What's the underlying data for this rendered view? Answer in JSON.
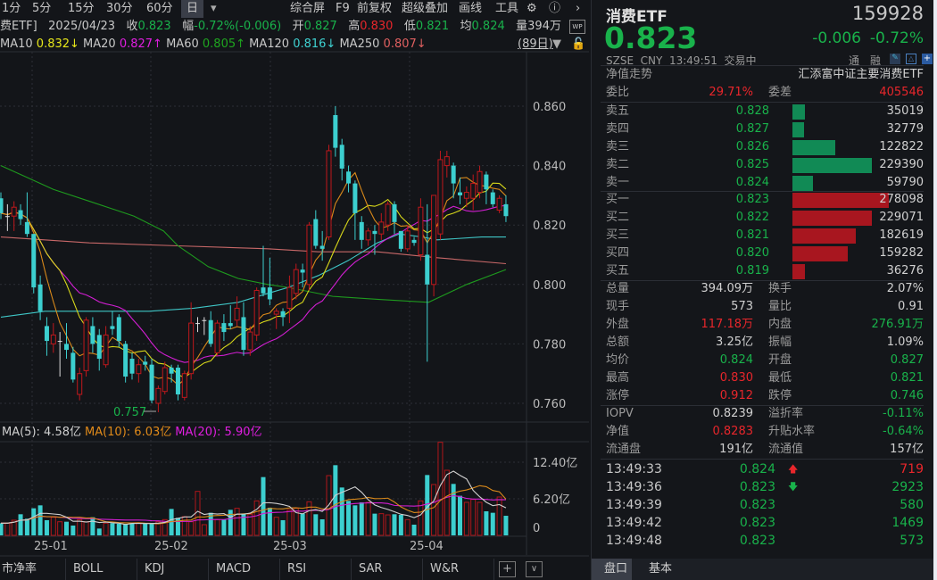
{
  "toolbar": {
    "periods": [
      "1分",
      "5分",
      "15分",
      "30分",
      "60分",
      "日"
    ],
    "selected": "日",
    "tools": [
      "综合屏",
      "F9",
      "前复权",
      "超级叠加",
      "画线",
      "工具"
    ]
  },
  "info": {
    "name": "费ETF]",
    "date": "2025/04/23",
    "close_label": "收",
    "close": "0.823",
    "chg_label": "幅",
    "chg": "-0.72%(-0.006)",
    "open_label": "开",
    "open": "0.827",
    "high_label": "高",
    "high": "0.830",
    "low_label": "低",
    "low": "0.821",
    "avg_label": "均",
    "avg": "0.824",
    "vol_label": "量",
    "vol": "394万"
  },
  "ma_row": [
    {
      "label": "MA10",
      "value": "0.832↓",
      "color": "#e6e61a"
    },
    {
      "label": "MA20",
      "value": "0.827↑",
      "color": "#e01ee0"
    },
    {
      "label": "MA60",
      "value": "0.805↑",
      "color": "#1fa51f"
    },
    {
      "label": "MA120",
      "value": "0.816↓",
      "color": "#3fd2d2"
    },
    {
      "label": "MA250",
      "value": "0.807↓",
      "color": "#e06060"
    }
  ],
  "days_label": "(89日)",
  "chart_data": {
    "type": "candlestick",
    "price_ticks": [
      "0.860",
      "0.840",
      "0.820",
      "0.800",
      "0.780",
      "0.760"
    ],
    "ylim": [
      0.757,
      0.86
    ],
    "low_marker": "0.757",
    "month_labels": [
      "25-01",
      "25-02",
      "25-03",
      "25-04"
    ],
    "candles": [
      [
        0.829,
        0.831,
        0.822,
        0.824
      ],
      [
        0.823,
        0.827,
        0.818,
        0.823
      ],
      [
        0.823,
        0.828,
        0.818,
        0.826
      ],
      [
        0.825,
        0.827,
        0.82,
        0.822
      ],
      [
        0.821,
        0.831,
        0.816,
        0.817
      ],
      [
        0.817,
        0.817,
        0.797,
        0.799
      ],
      [
        0.8,
        0.803,
        0.788,
        0.791
      ],
      [
        0.786,
        0.789,
        0.776,
        0.781
      ],
      [
        0.78,
        0.787,
        0.777,
        0.783
      ],
      [
        0.781,
        0.784,
        0.769,
        0.781
      ],
      [
        0.78,
        0.787,
        0.775,
        0.778
      ],
      [
        0.777,
        0.779,
        0.767,
        0.768
      ],
      [
        0.763,
        0.772,
        0.761,
        0.77
      ],
      [
        0.771,
        0.789,
        0.769,
        0.788
      ],
      [
        0.786,
        0.789,
        0.777,
        0.78
      ],
      [
        0.783,
        0.785,
        0.771,
        0.775
      ],
      [
        0.773,
        0.786,
        0.772,
        0.783
      ],
      [
        0.786,
        0.791,
        0.783,
        0.785
      ],
      [
        0.789,
        0.79,
        0.779,
        0.781
      ],
      [
        0.78,
        0.781,
        0.767,
        0.769
      ],
      [
        0.775,
        0.777,
        0.768,
        0.77
      ],
      [
        0.77,
        0.775,
        0.767,
        0.773
      ],
      [
        0.774,
        0.776,
        0.771,
        0.773
      ],
      [
        0.773,
        0.775,
        0.76,
        0.761
      ],
      [
        0.76,
        0.766,
        0.757,
        0.765
      ],
      [
        0.764,
        0.774,
        0.763,
        0.772
      ],
      [
        0.772,
        0.773,
        0.767,
        0.77
      ],
      [
        0.772,
        0.773,
        0.761,
        0.763
      ],
      [
        0.762,
        0.771,
        0.761,
        0.77
      ],
      [
        0.77,
        0.794,
        0.768,
        0.787
      ],
      [
        0.787,
        0.789,
        0.784,
        0.787
      ],
      [
        0.788,
        0.789,
        0.783,
        0.788
      ],
      [
        0.788,
        0.791,
        0.779,
        0.78
      ],
      [
        0.777,
        0.788,
        0.776,
        0.787
      ],
      [
        0.787,
        0.79,
        0.781,
        0.784
      ],
      [
        0.787,
        0.793,
        0.785,
        0.786
      ],
      [
        0.788,
        0.796,
        0.786,
        0.792
      ],
      [
        0.789,
        0.794,
        0.776,
        0.778
      ],
      [
        0.778,
        0.786,
        0.776,
        0.784
      ],
      [
        0.783,
        0.799,
        0.781,
        0.798
      ],
      [
        0.799,
        0.813,
        0.796,
        0.797
      ],
      [
        0.799,
        0.809,
        0.793,
        0.795
      ],
      [
        0.79,
        0.792,
        0.785,
        0.791
      ],
      [
        0.791,
        0.792,
        0.786,
        0.789
      ],
      [
        0.792,
        0.803,
        0.787,
        0.799
      ],
      [
        0.797,
        0.807,
        0.795,
        0.805
      ],
      [
        0.805,
        0.807,
        0.799,
        0.804
      ],
      [
        0.8,
        0.821,
        0.798,
        0.82
      ],
      [
        0.822,
        0.825,
        0.812,
        0.813
      ],
      [
        0.813,
        0.818,
        0.808,
        0.812
      ],
      [
        0.816,
        0.847,
        0.815,
        0.845
      ],
      [
        0.857,
        0.86,
        0.843,
        0.846
      ],
      [
        0.847,
        0.849,
        0.835,
        0.839
      ],
      [
        0.838,
        0.84,
        0.831,
        0.834
      ],
      [
        0.834,
        0.835,
        0.815,
        0.824
      ],
      [
        0.821,
        0.823,
        0.812,
        0.815
      ],
      [
        0.815,
        0.819,
        0.813,
        0.818
      ],
      [
        0.818,
        0.82,
        0.81,
        0.817
      ],
      [
        0.817,
        0.824,
        0.815,
        0.821
      ],
      [
        0.82,
        0.828,
        0.818,
        0.827
      ],
      [
        0.827,
        0.828,
        0.817,
        0.821
      ],
      [
        0.818,
        0.818,
        0.811,
        0.812
      ],
      [
        0.812,
        0.82,
        0.811,
        0.818
      ],
      [
        0.815,
        0.816,
        0.813,
        0.814
      ],
      [
        0.81,
        0.829,
        0.808,
        0.826
      ],
      [
        0.81,
        0.827,
        0.774,
        0.8
      ],
      [
        0.8,
        0.83,
        0.796,
        0.83
      ],
      [
        0.817,
        0.845,
        0.815,
        0.842
      ],
      [
        0.84,
        0.845,
        0.836,
        0.843
      ],
      [
        0.84,
        0.841,
        0.829,
        0.834
      ],
      [
        0.831,
        0.836,
        0.827,
        0.83
      ],
      [
        0.829,
        0.833,
        0.826,
        0.831
      ],
      [
        0.829,
        0.837,
        0.825,
        0.834
      ],
      [
        0.831,
        0.84,
        0.829,
        0.838
      ],
      [
        0.837,
        0.838,
        0.827,
        0.832
      ],
      [
        0.831,
        0.832,
        0.826,
        0.827
      ],
      [
        0.825,
        0.83,
        0.824,
        0.829
      ],
      [
        0.827,
        0.83,
        0.821,
        0.823
      ]
    ],
    "ma60": [
      [
        0,
        0.84
      ],
      [
        4,
        0.836
      ],
      [
        8,
        0.832
      ],
      [
        13.5,
        0.828
      ],
      [
        20.3,
        0.823
      ],
      [
        24.8,
        0.818
      ],
      [
        27,
        0.813
      ],
      [
        31.6,
        0.806
      ],
      [
        36.2,
        0.802
      ],
      [
        40.7,
        0.8
      ],
      [
        43.8,
        0.799
      ],
      [
        50.6,
        0.796
      ],
      [
        57.4,
        0.795
      ],
      [
        65.2,
        0.794
      ],
      [
        71,
        0.8
      ],
      [
        77,
        0.805
      ]
    ],
    "ma120": [
      [
        0,
        0.789
      ],
      [
        6.7,
        0.791
      ],
      [
        13.5,
        0.791
      ],
      [
        22.6,
        0.791
      ],
      [
        29.4,
        0.792
      ],
      [
        36.2,
        0.794
      ],
      [
        40.7,
        0.797
      ],
      [
        43.8,
        0.799
      ],
      [
        48.4,
        0.803
      ],
      [
        52.9,
        0.808
      ],
      [
        57.4,
        0.814
      ],
      [
        60.7,
        0.817
      ],
      [
        64.2,
        0.816
      ],
      [
        66.5,
        0.815
      ],
      [
        73.3,
        0.816
      ],
      [
        77,
        0.816
      ]
    ],
    "ma250": [
      [
        0,
        0.816
      ],
      [
        13.5,
        0.814
      ],
      [
        27,
        0.813
      ],
      [
        40.7,
        0.812
      ],
      [
        48.4,
        0.811
      ],
      [
        57.4,
        0.811
      ],
      [
        66.5,
        0.809
      ],
      [
        77,
        0.807
      ]
    ],
    "volume": {
      "unit": "亿",
      "ticks": [
        "12.40亿",
        "6.20亿",
        "0"
      ],
      "values": [
        2.07,
        2.07,
        2.58,
        3.59,
        2.83,
        4.6,
        5.1,
        2.58,
        3.08,
        2.32,
        2.32,
        1.67,
        2.68,
        2.32,
        3.08,
        1.16,
        2.07,
        2.07,
        1.97,
        1.97,
        2.07,
        2.07,
        1.97,
        1.97,
        2.32,
        2.68,
        4.49,
        2.98,
        3.18,
        2.32,
        7.47,
        1.82,
        3.84,
        2.68,
        2.68,
        4.34,
        4.6,
        3.69,
        3.59,
        5.86,
        9.9,
        4.7,
        3.08,
        2.58,
        4.34,
        4.6,
        3.69,
        5.71,
        3.59,
        2.73,
        10.15,
        11.92,
        8.13,
        5.86,
        5.1,
        5.61,
        5.61,
        3.69,
        3.69,
        3.48,
        3.59,
        3.48,
        2.68,
        1.82,
        5.86,
        10.25,
        8.64,
        15.81,
        11.06,
        8.74,
        6.72,
        5.61,
        6.11,
        5.61,
        4.09,
        3.84,
        6.52,
        3.33
      ]
    }
  },
  "vol_ma": [
    {
      "label": "MA(5): 4.58亿",
      "color": "#d0d0d0"
    },
    {
      "label": "MA(10): 6.03亿",
      "color": "#e08a1a"
    },
    {
      "label": "MA(20): 5.90亿",
      "color": "#e01ee0"
    }
  ],
  "tabs": [
    "市净率",
    "BOLL",
    "KDJ",
    "MACD",
    "RSI",
    "SAR",
    "W&R"
  ],
  "quote": {
    "name": "消费ETF",
    "code": "159928",
    "price": "0.823",
    "change": "-0.006",
    "pct": "-0.72%",
    "status": "SZSE  CNY  13:49:51  交易中",
    "tags": [
      "通",
      "融"
    ],
    "nav_trend": "净值走势",
    "fullname": "汇添富中证主要消费ETF",
    "wb_label": "委比",
    "wb": "29.71%",
    "wc_label": "委差",
    "wc": "405546"
  },
  "sells": [
    {
      "label": "卖五",
      "price": "0.828",
      "qty": "35019",
      "n": 35019
    },
    {
      "label": "卖四",
      "price": "0.827",
      "qty": "32779",
      "n": 32779
    },
    {
      "label": "卖三",
      "price": "0.826",
      "qty": "122822",
      "n": 122822
    },
    {
      "label": "卖二",
      "price": "0.825",
      "qty": "229390",
      "n": 229390
    },
    {
      "label": "卖一",
      "price": "0.824",
      "qty": "59790",
      "n": 59790
    }
  ],
  "buys": [
    {
      "label": "买一",
      "price": "0.823",
      "qty": "278098",
      "n": 278098
    },
    {
      "label": "买二",
      "price": "0.822",
      "qty": "229071",
      "n": 229071
    },
    {
      "label": "买三",
      "price": "0.821",
      "qty": "182619",
      "n": 182619
    },
    {
      "label": "买四",
      "price": "0.820",
      "qty": "159282",
      "n": 159282
    },
    {
      "label": "买五",
      "price": "0.819",
      "qty": "36276",
      "n": 36276
    }
  ],
  "stats": [
    [
      "总量",
      "394.09万",
      "w",
      "换手",
      "2.07%",
      "w"
    ],
    [
      "现手",
      "573",
      "w",
      "量比",
      "0.91",
      "w"
    ],
    [
      "外盘",
      "117.18万",
      "r",
      "内盘",
      "276.91万",
      "g"
    ],
    [
      "总额",
      "3.25亿",
      "w",
      "振幅",
      "1.09%",
      "w"
    ],
    [
      "均价",
      "0.824",
      "g",
      "开盘",
      "0.827",
      "g"
    ],
    [
      "最高",
      "0.830",
      "r",
      "最低",
      "0.821",
      "g"
    ],
    [
      "涨停",
      "0.912",
      "r",
      "跌停",
      "0.746",
      "g"
    ]
  ],
  "stats2": [
    [
      "IOPV",
      "0.8239",
      "w",
      "溢折率",
      "-0.11%",
      "g"
    ],
    [
      "净值",
      "0.8283",
      "r",
      "升贴水率",
      "-0.64%",
      "g"
    ],
    [
      "流通盘",
      "191亿",
      "w",
      "流通值",
      "157亿",
      "w"
    ]
  ],
  "ticks": [
    [
      "13:49:33",
      "0.824",
      "up",
      "719",
      "r"
    ],
    [
      "13:49:36",
      "0.823",
      "down",
      "2923",
      "g"
    ],
    [
      "13:49:39",
      "0.823",
      "",
      "580",
      "g"
    ],
    [
      "13:49:42",
      "0.823",
      "",
      "1469",
      "g"
    ],
    [
      "13:49:48",
      "0.823",
      "",
      "573",
      "g"
    ]
  ],
  "rtabs": [
    "盘口",
    "基本"
  ]
}
